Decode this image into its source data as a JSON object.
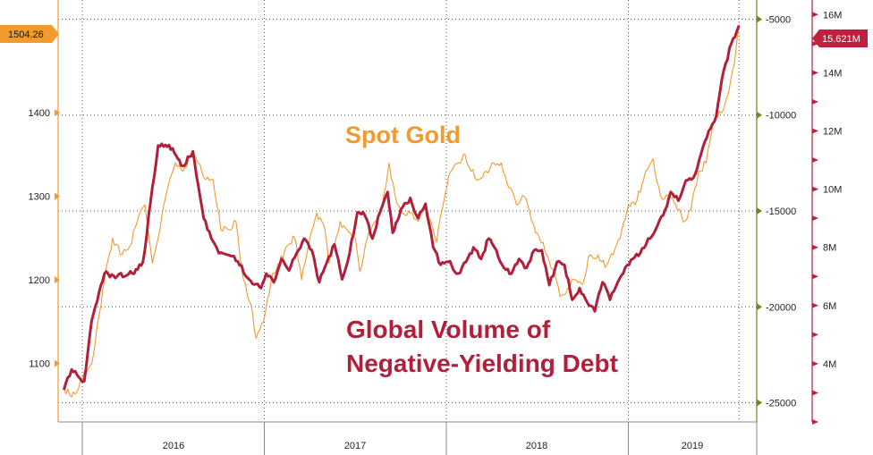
{
  "chart_data": {
    "type": "line",
    "annotations": {
      "gold": "Spot Gold",
      "debt_line1": "Global Volume of",
      "debt_line2": "Negative-Yielding Debt"
    },
    "x_categories": [
      "2016",
      "2017",
      "2018",
      "2019"
    ],
    "y_left": {
      "ticks": [
        "1100",
        "1200",
        "1300",
        "1400"
      ],
      "range": [
        1030,
        1535
      ],
      "last_value": "1504.26"
    },
    "y_green": {
      "ticks": [
        "-5000",
        "-10000",
        "-15000",
        "-20000",
        "-25000"
      ],
      "range": [
        -4000,
        -26000
      ]
    },
    "y_right": {
      "ticks": [
        "16M",
        "14M",
        "12M",
        "10M",
        "8M",
        "6M",
        "4M"
      ],
      "range": [
        2,
        16.5
      ],
      "last_value": "15.621M"
    },
    "series": [
      {
        "name": "Spot Gold",
        "color": "#f39a2e",
        "axis": "left",
        "x": [
          "2015-11-25",
          "2015-12-10",
          "2015-12-20",
          "2016-01-05",
          "2016-01-20",
          "2016-02-05",
          "2016-02-15",
          "2016-03-01",
          "2016-03-20",
          "2016-04-05",
          "2016-04-20",
          "2016-05-05",
          "2016-05-20",
          "2016-06-01",
          "2016-06-20",
          "2016-07-05",
          "2016-07-20",
          "2016-08-05",
          "2016-08-20",
          "2016-09-05",
          "2016-09-20",
          "2016-10-05",
          "2016-10-20",
          "2016-11-05",
          "2016-11-20",
          "2016-12-05",
          "2016-12-15",
          "2016-12-30",
          "2017-01-15",
          "2017-02-01",
          "2017-02-15",
          "2017-03-01",
          "2017-03-15",
          "2017-04-01",
          "2017-04-15",
          "2017-05-01",
          "2017-05-09",
          "2017-06-01",
          "2017-06-15",
          "2017-07-01",
          "2017-07-10",
          "2017-07-25",
          "2017-08-10",
          "2017-08-25",
          "2017-09-08",
          "2017-09-20",
          "2017-10-05",
          "2017-10-20",
          "2017-11-05",
          "2017-11-20",
          "2017-12-05",
          "2017-12-12",
          "2017-12-28",
          "2018-01-10",
          "2018-01-25",
          "2018-02-08",
          "2018-02-20",
          "2018-03-05",
          "2018-03-20",
          "2018-04-05",
          "2018-04-20",
          "2018-05-05",
          "2018-05-20",
          "2018-06-05",
          "2018-06-20",
          "2018-07-05",
          "2018-07-20",
          "2018-08-05",
          "2018-08-16",
          "2018-09-01",
          "2018-09-15",
          "2018-10-01",
          "2018-10-15",
          "2018-11-01",
          "2018-11-15",
          "2018-12-01",
          "2018-12-15",
          "2019-01-01",
          "2019-01-15",
          "2019-02-01",
          "2019-02-20",
          "2019-03-05",
          "2019-03-20",
          "2019-04-05",
          "2019-04-23",
          "2019-05-05",
          "2019-05-20",
          "2019-06-05",
          "2019-06-20",
          "2019-07-05",
          "2019-07-20",
          "2019-08-01",
          "2019-08-10"
        ],
        "values": [
          1070,
          1060,
          1065,
          1090,
          1100,
          1160,
          1200,
          1250,
          1230,
          1240,
          1270,
          1290,
          1220,
          1250,
          1310,
          1340,
          1330,
          1350,
          1340,
          1320,
          1320,
          1260,
          1260,
          1270,
          1200,
          1170,
          1130,
          1150,
          1200,
          1220,
          1240,
          1250,
          1200,
          1250,
          1280,
          1260,
          1220,
          1270,
          1260,
          1250,
          1210,
          1250,
          1270,
          1290,
          1340,
          1300,
          1280,
          1280,
          1270,
          1290,
          1260,
          1245,
          1300,
          1330,
          1340,
          1350,
          1330,
          1320,
          1330,
          1340,
          1340,
          1310,
          1290,
          1300,
          1270,
          1250,
          1230,
          1210,
          1180,
          1190,
          1200,
          1195,
          1230,
          1230,
          1215,
          1230,
          1250,
          1290,
          1290,
          1320,
          1345,
          1300,
          1300,
          1290,
          1270,
          1285,
          1330,
          1340,
          1390,
          1400,
          1425,
          1460,
          1504.26
        ]
      },
      {
        "name": "Global Volume of Negative-Yielding Debt",
        "color": "#b21f3a",
        "axis": "right",
        "x": [
          "2015-11-25",
          "2015-12-10",
          "2016-01-05",
          "2016-01-20",
          "2016-02-15",
          "2016-03-10",
          "2016-04-10",
          "2016-05-01",
          "2016-06-01",
          "2016-06-30",
          "2016-07-20",
          "2016-08-10",
          "2016-09-01",
          "2016-10-01",
          "2016-11-01",
          "2016-12-01",
          "2016-12-25",
          "2017-01-05",
          "2017-01-20",
          "2017-02-05",
          "2017-02-20",
          "2017-03-05",
          "2017-03-20",
          "2017-04-05",
          "2017-04-20",
          "2017-05-05",
          "2017-05-20",
          "2017-06-05",
          "2017-06-20",
          "2017-07-05",
          "2017-07-20",
          "2017-08-05",
          "2017-08-20",
          "2017-09-05",
          "2017-09-15",
          "2017-10-01",
          "2017-10-20",
          "2017-11-05",
          "2017-11-20",
          "2017-12-05",
          "2017-12-20",
          "2018-01-05",
          "2018-01-25",
          "2018-02-10",
          "2018-02-25",
          "2018-03-10",
          "2018-03-25",
          "2018-04-10",
          "2018-04-25",
          "2018-05-10",
          "2018-05-25",
          "2018-06-10",
          "2018-06-25",
          "2018-07-10",
          "2018-07-25",
          "2018-08-10",
          "2018-08-25",
          "2018-09-10",
          "2018-09-25",
          "2018-10-10",
          "2018-10-25",
          "2018-11-10",
          "2018-11-25",
          "2018-12-10",
          "2018-12-25",
          "2019-01-10",
          "2019-01-25",
          "2019-02-10",
          "2019-02-25",
          "2019-03-10",
          "2019-03-25",
          "2019-04-10",
          "2019-04-25",
          "2019-05-10",
          "2019-05-25",
          "2019-06-10",
          "2019-06-25",
          "2019-07-10",
          "2019-07-25",
          "2019-08-05",
          "2019-08-10"
        ],
        "values": [
          3.1,
          3.8,
          3.4,
          5.5,
          7.1,
          7.0,
          7.1,
          7.5,
          11.5,
          11.4,
          10.8,
          11.3,
          9.0,
          7.8,
          7.7,
          6.9,
          6.6,
          7.1,
          6.8,
          7.6,
          7.2,
          7.8,
          8.3,
          7.9,
          6.8,
          7.5,
          8.1,
          6.9,
          7.8,
          9.2,
          9.1,
          8.3,
          9.2,
          9.9,
          8.5,
          9.3,
          9.7,
          9.0,
          9.5,
          8.0,
          7.4,
          7.5,
          7.1,
          7.5,
          8.0,
          7.6,
          8.3,
          7.9,
          7.3,
          7.1,
          7.6,
          7.3,
          7.9,
          7.9,
          6.7,
          7.5,
          7.4,
          6.2,
          6.6,
          6.1,
          5.8,
          6.8,
          6.2,
          6.8,
          7.3,
          7.6,
          7.8,
          8.3,
          8.6,
          9.1,
          9.9,
          9.6,
          10.3,
          10.4,
          11.2,
          12.0,
          12.5,
          14.1,
          15.0,
          15.4,
          15.621
        ]
      }
    ]
  }
}
